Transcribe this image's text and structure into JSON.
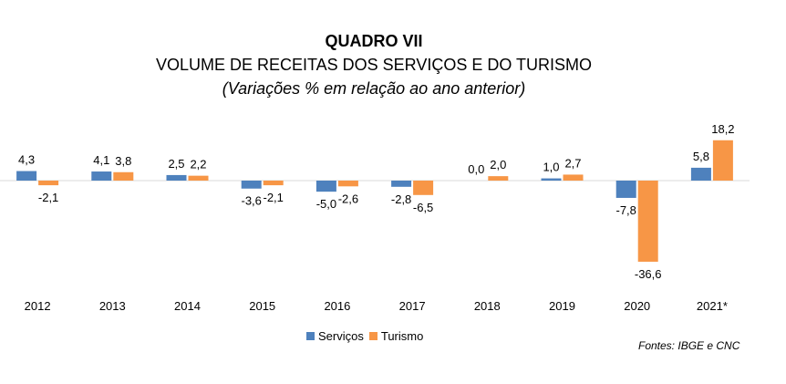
{
  "header": {
    "title": "QUADRO VII",
    "subtitle": "VOLUME DE RECEITAS DOS SERVIÇOS E DO TURISMO",
    "note": "(Variações % em relação ao ano anterior)"
  },
  "source": "Fontes: IBGE e CNC",
  "chart_data": {
    "type": "bar",
    "title": "QUADRO VII",
    "subtitle": "VOLUME DE RECEITAS DOS SERVIÇOS E DO TURISMO",
    "ylabel": "",
    "xlabel": "",
    "grid": false,
    "legend_position": "bottom",
    "categories": [
      "2012",
      "2013",
      "2014",
      "2015",
      "2016",
      "2017",
      "2018",
      "2019",
      "2020",
      "2021*"
    ],
    "series": [
      {
        "name": "Serviços",
        "color": "#4E81BD",
        "values": [
          4.3,
          4.1,
          2.5,
          -3.6,
          -5.0,
          -2.8,
          0.0,
          1.0,
          -7.8,
          5.8
        ],
        "labels": [
          "4,3",
          "4,1",
          "2,5",
          "-3,6",
          "-5,0",
          "-2,8",
          "0,0",
          "1,0",
          "-7,8",
          "5,8"
        ]
      },
      {
        "name": "Turismo",
        "color": "#F79646",
        "values": [
          -2.1,
          3.8,
          2.2,
          -2.1,
          -2.6,
          -6.5,
          2.0,
          2.7,
          -36.6,
          18.2
        ],
        "labels": [
          "-2,1",
          "3,8",
          "2,2",
          "-2,1",
          "-2,6",
          "-6,5",
          "2,0",
          "2,7",
          "-36,6",
          "18,2"
        ]
      }
    ]
  }
}
